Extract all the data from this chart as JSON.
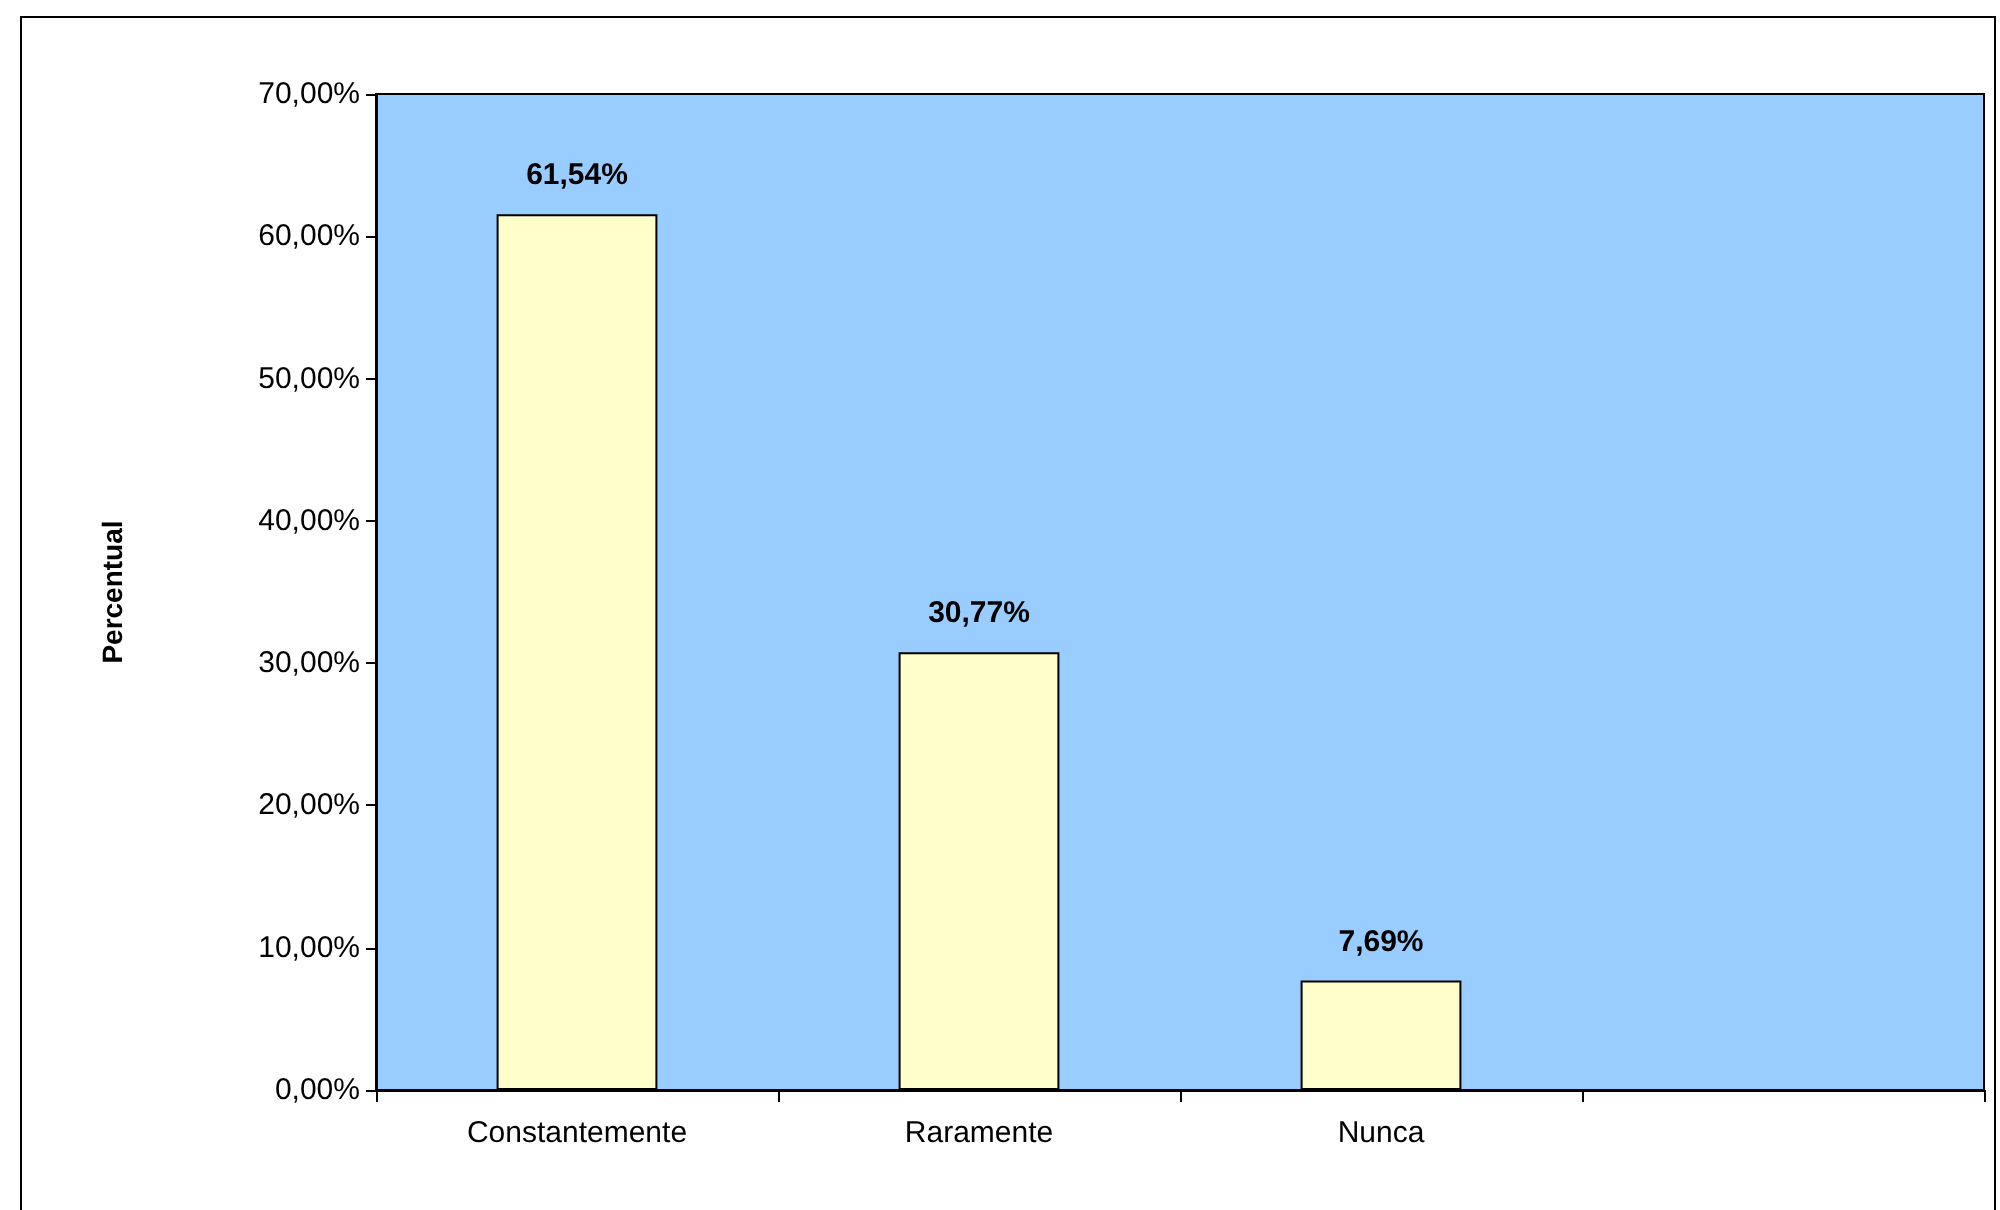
{
  "chart_data": {
    "type": "bar",
    "ylabel": "Percentual",
    "categories": [
      "Constantemente",
      "Raramente",
      "Nunca",
      null
    ],
    "values": [
      61.54,
      30.77,
      7.69,
      null
    ],
    "color": "#ffffcc",
    "value_labels": [
      "61,54%",
      "30,77%",
      "7,69%",
      null
    ],
    "ylim": [
      0,
      70
    ],
    "yticks": [
      {
        "value": 0,
        "label": "0,00%"
      },
      {
        "value": 10,
        "label": "10,00%"
      },
      {
        "value": 20,
        "label": "20,00%"
      },
      {
        "value": 30,
        "label": "30,00%"
      },
      {
        "value": 40,
        "label": "40,00%"
      },
      {
        "value": 50,
        "label": "50,00%"
      },
      {
        "value": 60,
        "label": "60,00%"
      },
      {
        "value": 70,
        "label": "70,00%"
      }
    ],
    "grid": false
  }
}
